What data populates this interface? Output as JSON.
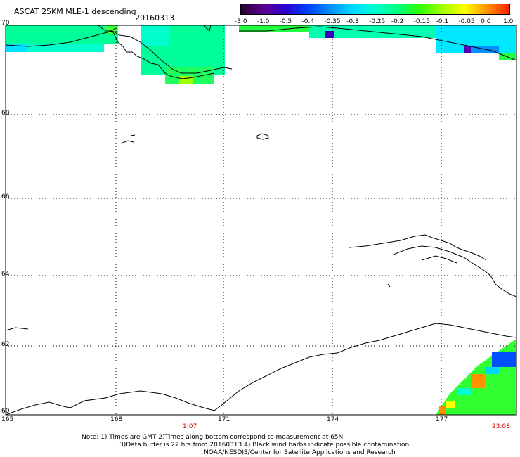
{
  "header": {
    "title": "ASCAT 25KM MLE-1 descending",
    "date": "20160313"
  },
  "colorbar": {
    "labels": [
      "-3.0",
      "-1.0",
      "-0.5",
      "-0.4",
      "-0.35",
      "-0.3",
      "-0.25",
      "-0.2",
      "-0.15",
      "-0.1",
      "-0.05",
      "0.0",
      "1.0"
    ],
    "colors": [
      "#2a0030",
      "#5a0090",
      "#2a00d0",
      "#0040ff",
      "#0090ff",
      "#00d8ff",
      "#00ffd0",
      "#00ff80",
      "#30ff00",
      "#a0ff00",
      "#ffff00",
      "#ff9000",
      "#ff2000"
    ]
  },
  "map": {
    "lat_labels": [
      "70",
      "68",
      "66",
      "64",
      "62",
      "60"
    ],
    "lon_labels": [
      "165",
      "168",
      "171",
      "174",
      "177"
    ]
  },
  "times": {
    "start": "1:07",
    "end": "23:08"
  },
  "notes": {
    "line1": "Note: 1) Times are GMT 2)Times along bottom correspond to measurement at 65N",
    "line2": "3)Data buffer is 22 hrs from 20160313 4) Black wind barbs indicate possible contamination",
    "line3": "NOAA/NESDIS/Center for Satellite Applications and Research"
  }
}
